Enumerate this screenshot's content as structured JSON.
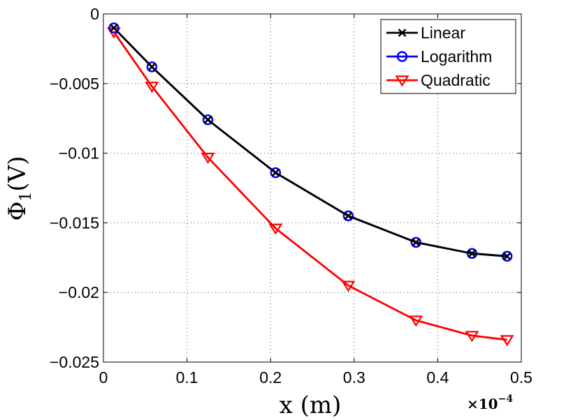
{
  "chart_data": {
    "type": "line",
    "title": "",
    "xlabel": "x (m)",
    "ylabel": "Φ1(V)",
    "ylabel_main": "Φ",
    "ylabel_sub": "1",
    "ylabel_unit": "(V)",
    "x_multiplier_text": "×10",
    "x_multiplier_exp": "−4",
    "xlim": [
      0,
      0.5
    ],
    "ylim": [
      -0.025,
      0
    ],
    "xticks": [
      0,
      0.1,
      0.2,
      0.3,
      0.4,
      0.5
    ],
    "xtick_labels": [
      "0",
      "0.1",
      "0.2",
      "0.3",
      "0.4",
      "0.5"
    ],
    "yticks": [
      0,
      -0.005,
      -0.01,
      -0.015,
      -0.02,
      -0.025
    ],
    "ytick_labels": [
      "0",
      "−0.005",
      "−0.01",
      "−0.015",
      "−0.02",
      "−0.025"
    ],
    "grid": true,
    "legend_position": "top-right",
    "x": [
      0.0125,
      0.058,
      0.125,
      0.206,
      0.293,
      0.374,
      0.441,
      0.483
    ],
    "series": [
      {
        "name": "Linear",
        "color": "#000000",
        "marker": "x",
        "values": [
          -0.001,
          -0.0038,
          -0.0076,
          -0.0114,
          -0.0145,
          -0.0164,
          -0.0172,
          -0.0174
        ]
      },
      {
        "name": "Logarithm",
        "color": "#0000ff",
        "marker": "o",
        "values": [
          -0.001,
          -0.0038,
          -0.0076,
          -0.0114,
          -0.0145,
          -0.0164,
          -0.0172,
          -0.0174
        ]
      },
      {
        "name": "Quadratic",
        "color": "#ff0000",
        "marker": "v",
        "values": [
          -0.0013,
          -0.0052,
          -0.0103,
          -0.0154,
          -0.0195,
          -0.022,
          -0.0231,
          -0.0234
        ]
      }
    ]
  }
}
